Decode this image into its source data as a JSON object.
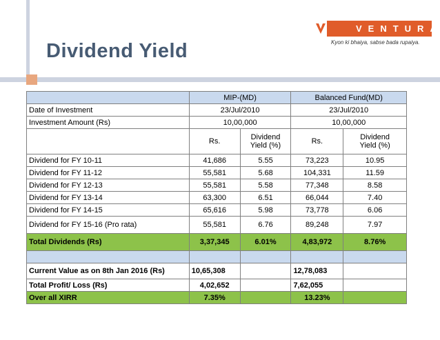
{
  "title": "Dividend Yield",
  "logo": {
    "brand": "VENTURA",
    "tagline": "Kyon ki bhaiya, sabse bada rupaiya.",
    "icon": "ventura-v-icon",
    "color": "#e05c2a"
  },
  "colors": {
    "header_fill": "#c9d9ee",
    "total_fill": "#8dc24a",
    "title": "#475b73"
  },
  "table": {
    "fund1": "MIP-(MD)",
    "fund2": "Balanced Fund(MD)",
    "date_label": "Date of Investment",
    "date1": "23/Jul/2010",
    "date2": "23/Jul/2010",
    "amount_label": "Investment Amount (Rs)",
    "amount1": "10,00,000",
    "amount2": "10,00,000",
    "col_rs": "Rs.",
    "col_yield_1": "Dividend",
    "col_yield_2": "Yield (%)",
    "rows": [
      {
        "label": "Dividend for FY 10-11",
        "rs1": "41,686",
        "y1": "5.55",
        "rs2": "73,223",
        "y2": "10.95"
      },
      {
        "label": "Dividend for FY 11-12",
        "rs1": "55,581",
        "y1": "5.68",
        "rs2": "104,331",
        "y2": "11.59"
      },
      {
        "label": "Dividend for FY 12-13",
        "rs1": "55,581",
        "y1": "5.58",
        "rs2": "77,348",
        "y2": "8.58"
      },
      {
        "label": "Dividend for FY 13-14",
        "rs1": "63,300",
        "y1": "6.51",
        "rs2": "66,044",
        "y2": "7.40"
      },
      {
        "label": "Dividend for FY 14-15",
        "rs1": "65,616",
        "y1": "5.98",
        "rs2": "73,778",
        "y2": "6.06"
      },
      {
        "label": "Dividend for FY  15-16 (Pro rata)",
        "rs1": "55,581",
        "y1": "6.76",
        "rs2": "89,248",
        "y2": "7.97"
      }
    ],
    "total": {
      "label": "Total Dividends (Rs)",
      "rs1": "3,37,345",
      "y1": "6.01%",
      "rs2": "4,83,972",
      "y2": "8.76%"
    },
    "current": {
      "label": "Current Value as on 8th Jan 2016 (Rs)",
      "v1": "10,65,308",
      "v2": "12,78,083"
    },
    "profit": {
      "label": "Total Profit/ Loss (Rs)",
      "v1": "4,02,652",
      "v2": "7,62,055"
    },
    "xirr": {
      "label": "Over all XIRR",
      "v1": "7.35%",
      "v2": "13.23%"
    }
  }
}
